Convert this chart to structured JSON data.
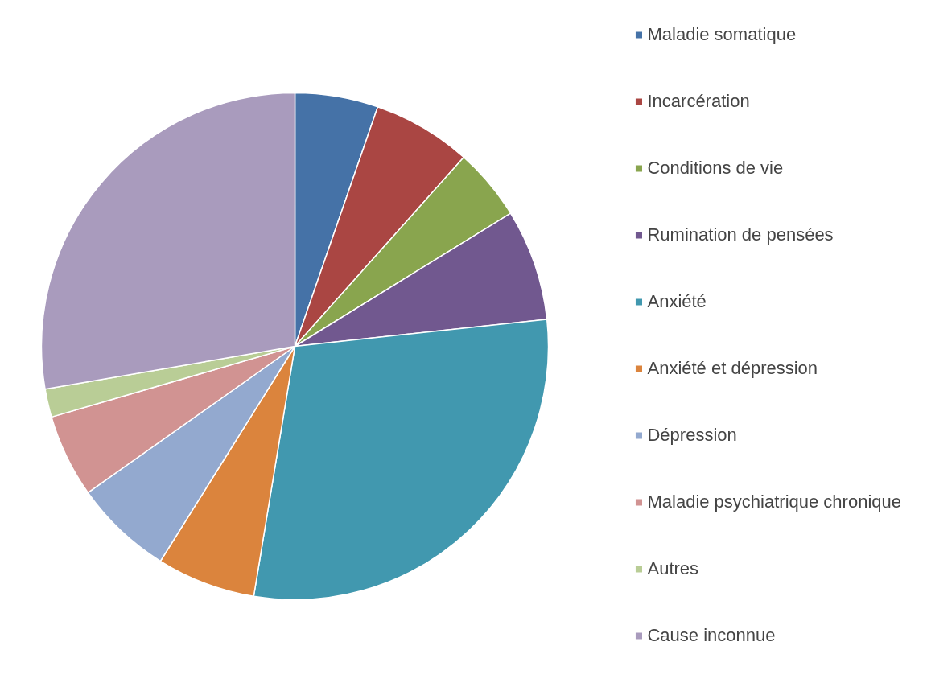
{
  "chart_data": {
    "type": "pie",
    "categories": [
      "Maladie somatique",
      "Incarcération",
      "Conditions de vie",
      "Rumination de pensées",
      "Anxiété",
      "Anxiété et dépression",
      "Dépression",
      "Maladie psychiatrique chronique",
      "Autres",
      "Cause inconnue"
    ],
    "values": [
      5.3,
      6.3,
      4.6,
      7.1,
      29.3,
      6.3,
      6.3,
      5.3,
      1.8,
      27.7
    ],
    "colors": [
      "#4572a7",
      "#aa4643",
      "#89a54e",
      "#71588f",
      "#4198af",
      "#db843d",
      "#93a9cf",
      "#d19392",
      "#b9cd96",
      "#a99bbd"
    ],
    "legend": "right"
  }
}
